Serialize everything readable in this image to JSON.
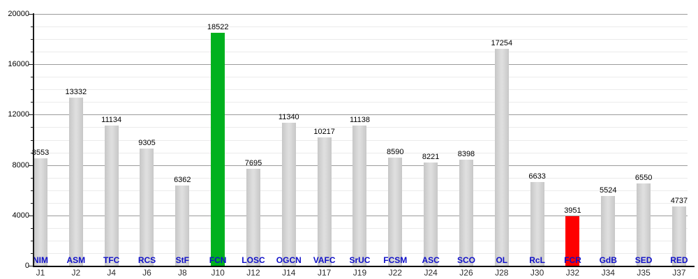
{
  "chart_data": {
    "type": "bar",
    "title": "",
    "xlabel": "",
    "ylabel": "",
    "ylim": [
      0,
      20000
    ],
    "y_major_step": 4000,
    "y_minor_step": 1000,
    "y_tick_labels": [
      "0",
      "4000",
      "8000",
      "12000",
      "16000",
      "20000"
    ],
    "grid": "on",
    "legend": "none",
    "categories": [
      "J1",
      "J2",
      "J4",
      "J6",
      "J8",
      "J10",
      "J12",
      "J14",
      "J17",
      "J19",
      "J22",
      "J24",
      "J26",
      "J28",
      "J30",
      "J32",
      "J34",
      "J35",
      "J37"
    ],
    "team_labels": [
      "NIM",
      "ASM",
      "TFC",
      "RCS",
      "StF",
      "FCN",
      "LOSC",
      "OGCN",
      "VAFC",
      "SrUC",
      "FCSM",
      "ASC",
      "SCO",
      "OL",
      "RcL",
      "FCR",
      "GdB",
      "SED",
      "RED"
    ],
    "values": [
      8553,
      13332,
      11134,
      9305,
      6362,
      18522,
      7695,
      11340,
      10217,
      11138,
      8590,
      8221,
      8398,
      17254,
      6633,
      3951,
      5524,
      6550,
      4737
    ],
    "max_highlight": {
      "index": 5,
      "team": "FCN",
      "value": 18522,
      "color": "#00b11e"
    },
    "min_highlight": {
      "index": 15,
      "team": "FCR",
      "value": 3951,
      "color": "#fe0000"
    }
  },
  "colors": {
    "default_bar": "#d3d3d3",
    "max_bar": "#00b11e",
    "min_bar": "#fe0000",
    "team_label": "#0f0fc8",
    "axis": "#000000",
    "major_grid": "#9b9b9b",
    "minor_grid": "#ebebeb"
  }
}
